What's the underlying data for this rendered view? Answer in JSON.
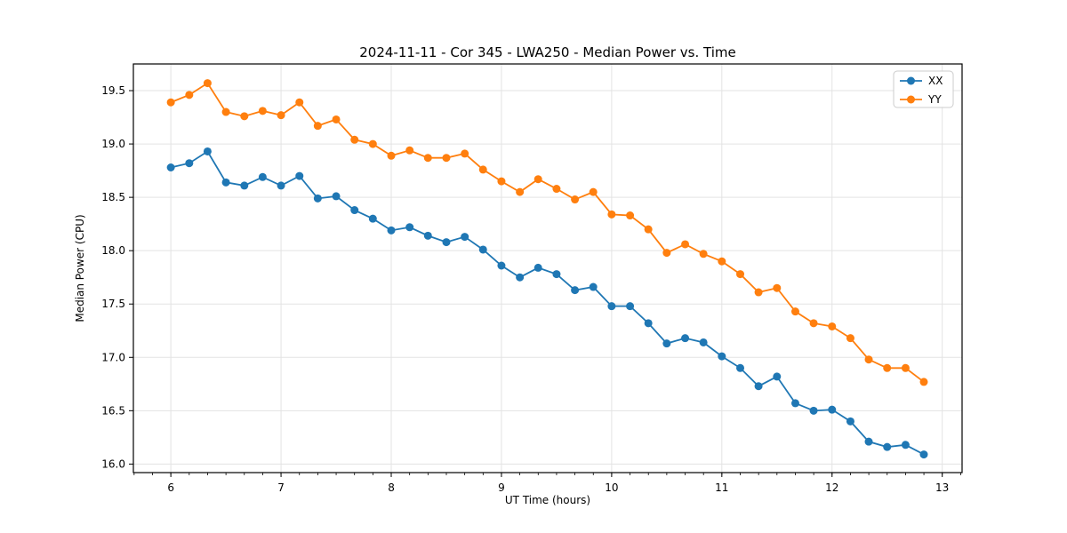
{
  "chart_data": {
    "type": "line",
    "title": "2024-11-11 - Cor 345 - LWA250 - Median Power vs. Time",
    "xlabel": "UT Time (hours)",
    "ylabel": "Median Power (CPU)",
    "xlim": [
      5.66,
      13.18
    ],
    "ylim": [
      15.92,
      19.75
    ],
    "x_ticks": [
      6,
      7,
      8,
      9,
      10,
      11,
      12,
      13
    ],
    "y_ticks": [
      16.0,
      16.5,
      17.0,
      17.5,
      18.0,
      18.5,
      19.0,
      19.5
    ],
    "x_minor_step": 0.16667,
    "grid": true,
    "legend_position": "upper right",
    "x": [
      6.0,
      6.167,
      6.333,
      6.5,
      6.667,
      6.833,
      7.0,
      7.167,
      7.333,
      7.5,
      7.667,
      7.833,
      8.0,
      8.167,
      8.333,
      8.5,
      8.667,
      8.833,
      9.0,
      9.167,
      9.333,
      9.5,
      9.667,
      9.833,
      10.0,
      10.167,
      10.333,
      10.5,
      10.667,
      10.833,
      11.0,
      11.167,
      11.333,
      11.5,
      11.667,
      11.833,
      12.0,
      12.167,
      12.333,
      12.5,
      12.667,
      12.833
    ],
    "series": [
      {
        "name": "XX",
        "color": "#1f77b4",
        "values": [
          18.78,
          18.82,
          18.93,
          18.64,
          18.61,
          18.69,
          18.61,
          18.7,
          18.49,
          18.51,
          18.38,
          18.3,
          18.19,
          18.22,
          18.14,
          18.08,
          18.13,
          18.01,
          17.86,
          17.75,
          17.84,
          17.78,
          17.63,
          17.66,
          17.48,
          17.48,
          17.32,
          17.13,
          17.18,
          17.14,
          17.01,
          16.9,
          16.73,
          16.82,
          16.57,
          16.5,
          16.51,
          16.4,
          16.21,
          16.16,
          16.18,
          16.09
        ]
      },
      {
        "name": "YY",
        "color": "#ff7f0e",
        "values": [
          19.39,
          19.46,
          19.57,
          19.3,
          19.26,
          19.31,
          19.27,
          19.39,
          19.17,
          19.23,
          19.04,
          19.0,
          18.89,
          18.94,
          18.87,
          18.87,
          18.91,
          18.76,
          18.65,
          18.55,
          18.67,
          18.58,
          18.48,
          18.55,
          18.34,
          18.33,
          18.2,
          17.98,
          18.06,
          17.97,
          17.9,
          17.78,
          17.61,
          17.65,
          17.43,
          17.32,
          17.29,
          17.18,
          16.98,
          16.9,
          16.9,
          16.77
        ]
      }
    ]
  },
  "colors": {
    "background": "#ffffff",
    "grid": "#e3e3e3",
    "axis": "#000000",
    "tick_label": "#000000",
    "legend_border": "#cccccc",
    "series_xx": "#1f77b4",
    "series_yy": "#ff7f0e"
  }
}
